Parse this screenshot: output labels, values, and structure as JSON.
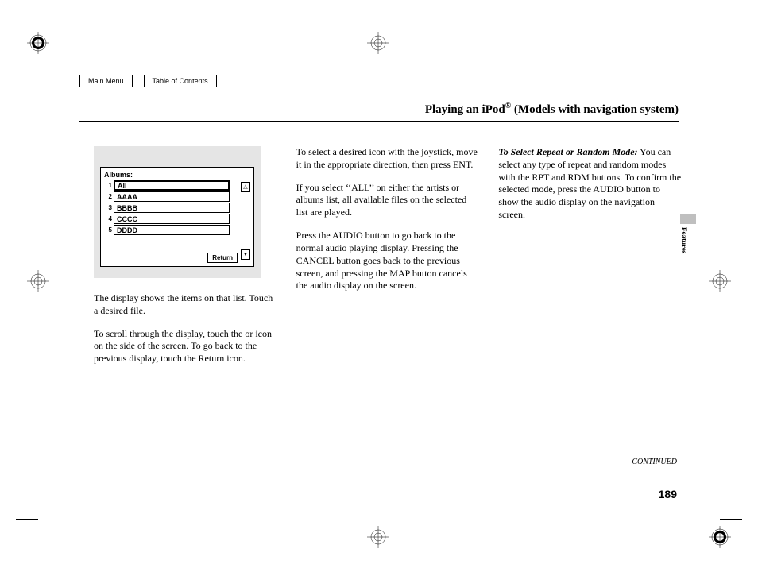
{
  "nav": {
    "main_menu": "Main Menu",
    "toc": "Table of Contents"
  },
  "title": {
    "pre": "Playing an iPod",
    "reg": "®",
    "post": " (Models with navigation system)"
  },
  "display": {
    "label": "Albums:",
    "rows": [
      {
        "n": "1",
        "v": "All",
        "selected": true
      },
      {
        "n": "2",
        "v": "AAAA",
        "selected": false
      },
      {
        "n": "3",
        "v": "BBBB",
        "selected": false
      },
      {
        "n": "4",
        "v": "CCCC",
        "selected": false
      },
      {
        "n": "5",
        "v": "DDDD",
        "selected": false
      }
    ],
    "up": "△",
    "down": "▼",
    "return": "Return"
  },
  "col1": {
    "p1": "The display shows the items on that list. Touch a desired file.",
    "p2": "To scroll through the display, touch the      or      icon on the side of the screen. To go back to the previous display, touch the Return icon."
  },
  "col2": {
    "p1": "To select a desired icon with the joystick, move it in the appropriate direction, then press ENT.",
    "p2": "If you select ‘‘ALL’’ on either the artists or albums list, all available files on the selected list are played.",
    "p3": "Press the AUDIO button to go back to the normal audio playing display. Pressing the CANCEL button goes back to the previous screen, and pressing the MAP button cancels the audio display on the screen."
  },
  "col3": {
    "h": "To Select Repeat or Random Mode:",
    "p1": "You can select any type of repeat and random modes with the RPT and RDM buttons. To confirm the selected mode, press the AUDIO button to show the audio display on the navigation screen."
  },
  "side_tab": "Features",
  "continued": "CONTINUED",
  "page_num": "189"
}
